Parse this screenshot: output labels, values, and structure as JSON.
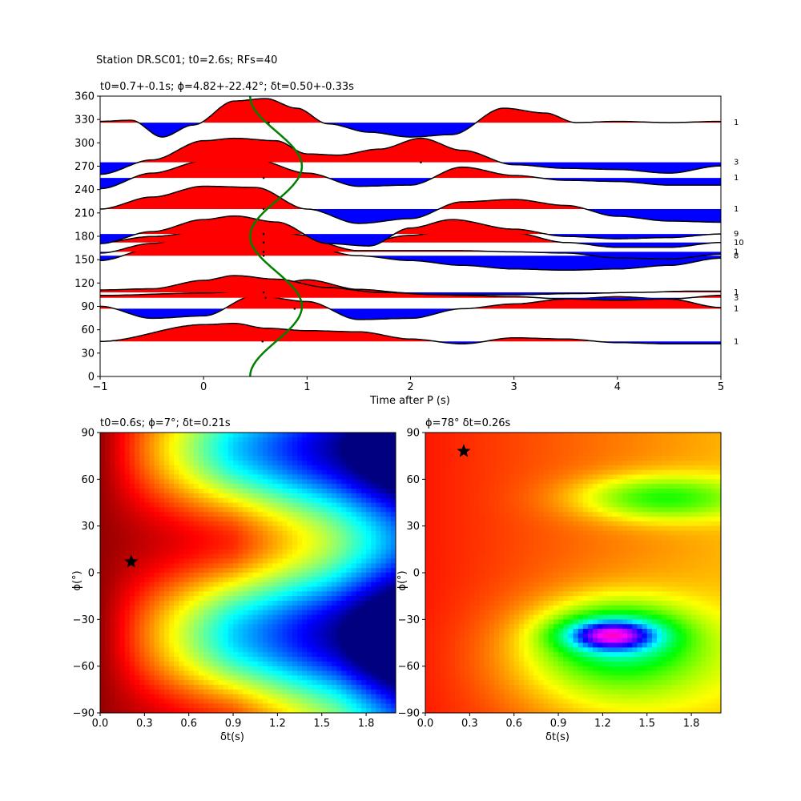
{
  "suptitle": "Station DR.SC01; t0=2.6s; RFs=40",
  "chart_data": [
    {
      "type": "wiggle",
      "title": "t0=0.7+-0.1s; ϕ=4.82+-22.42°; δt=0.50+-0.33s",
      "xlabel": "Time after P (s)",
      "ylabel": "",
      "xlim": [
        -1,
        5
      ],
      "ylim": [
        0,
        360
      ],
      "xticks": [
        "−1",
        "0",
        "1",
        "2",
        "3",
        "4",
        "5"
      ],
      "xtick_values": [
        -1,
        0,
        1,
        2,
        3,
        4,
        5
      ],
      "yticks": [
        "0",
        "30",
        "60",
        "90",
        "120",
        "150",
        "180",
        "210",
        "240",
        "270",
        "300",
        "330",
        "360"
      ],
      "ytick_values": [
        0,
        30,
        60,
        90,
        120,
        150,
        180,
        210,
        240,
        270,
        300,
        330,
        360
      ],
      "positive_color": "#ff0000",
      "negative_color": "#0000ff",
      "curve_color": "#008000",
      "baz_sine": {
        "center": 0.7,
        "amplitude": 0.25
      },
      "traces": [
        {
          "baz": 45,
          "count": "1",
          "pick": 0.57,
          "x": [
            -1,
            0,
            0.3,
            0.6,
            1,
            1.5,
            2,
            2.5,
            3,
            3.5,
            4,
            4.5,
            5
          ],
          "y": [
            0,
            0.7,
            0.75,
            0.55,
            0.45,
            0.4,
            0.1,
            -0.1,
            0.15,
            0.1,
            -0.05,
            -0.1,
            -0.1
          ]
        },
        {
          "baz": 87,
          "count": "1",
          "pick": 0.88,
          "x": [
            -1,
            -0.5,
            0,
            0.5,
            1,
            1.5,
            2,
            2.5,
            3,
            3.5,
            4,
            4.5,
            5
          ],
          "y": [
            0.1,
            -0.4,
            -0.3,
            0.55,
            0.3,
            -0.45,
            -0.4,
            0.0,
            0.2,
            0.4,
            0.5,
            0.4,
            0.05
          ]
        },
        {
          "baz": 101,
          "count": "3",
          "pick": 0.6,
          "x": [
            -1,
            0,
            0.5,
            1,
            1.5,
            2,
            2.5,
            3,
            3.5,
            4,
            4.5,
            5
          ],
          "y": [
            0.1,
            0.2,
            0.3,
            0.75,
            0.35,
            0.2,
            0.1,
            0.05,
            -0.05,
            -0.1,
            -0.05,
            0.1
          ]
        },
        {
          "baz": 108,
          "count": "1",
          "pick": 0.58,
          "x": [
            -1,
            -0.5,
            0,
            0.3,
            0.7,
            1.2,
            1.7,
            2.3,
            3,
            3.6,
            4.2,
            4.7,
            5
          ],
          "y": [
            0.1,
            0.15,
            0.5,
            0.7,
            0.55,
            0.2,
            0.0,
            -0.1,
            -0.1,
            -0.05,
            0.0,
            0.05,
            0.05
          ]
        },
        {
          "baz": 155,
          "count": "8",
          "pick": 0.58,
          "x": [
            -1,
            -0.5,
            0,
            0.4,
            0.9,
            1.5,
            2,
            2.5,
            3,
            3.5,
            4,
            4.5,
            5
          ],
          "y": [
            -0.2,
            0.3,
            0.75,
            0.85,
            0.5,
            0.0,
            -0.2,
            -0.4,
            -0.55,
            -0.6,
            -0.55,
            -0.4,
            -0.1
          ]
        },
        {
          "baz": 160,
          "count": "1",
          "pick": 0.58,
          "x": [
            -1,
            -0.5,
            0,
            0.5,
            1,
            1.5,
            2,
            2.5,
            3,
            3.5,
            4,
            4.5,
            5
          ],
          "y": [
            -0.05,
            0.35,
            0.75,
            0.95,
            0.5,
            0.05,
            0.05,
            0.05,
            0.0,
            -0.05,
            -0.25,
            -0.3,
            -0.1
          ]
        },
        {
          "baz": 172,
          "count": "10",
          "pick": 0.58,
          "x": [
            -1,
            -0.5,
            0,
            0.5,
            1,
            1.5,
            2,
            2.5,
            3,
            3.5,
            4,
            4.5,
            5
          ],
          "y": [
            0.0,
            0.25,
            0.45,
            0.65,
            0.3,
            -0.05,
            0.3,
            0.6,
            0.4,
            0.0,
            -0.2,
            -0.2,
            0.0
          ]
        },
        {
          "baz": 183,
          "count": "9",
          "pick": 0.58,
          "x": [
            -1,
            -0.5,
            0,
            0.3,
            0.7,
            1.2,
            1.6,
            2,
            2.4,
            3,
            3.5,
            4,
            4.5,
            5
          ],
          "y": [
            -0.4,
            0.1,
            0.6,
            0.75,
            0.5,
            -0.4,
            -0.5,
            0.25,
            0.6,
            0.2,
            -0.1,
            -0.2,
            -0.15,
            0.0
          ]
        },
        {
          "baz": 215,
          "count": "1",
          "pick": 0.58,
          "x": [
            -1,
            -0.5,
            0,
            0.5,
            1,
            1.5,
            2,
            2.5,
            3,
            3.5,
            4,
            4.5,
            5
          ],
          "y": [
            0.0,
            0.5,
            0.95,
            0.9,
            0.0,
            -0.6,
            -0.4,
            0.3,
            0.4,
            0.15,
            -0.3,
            -0.5,
            -0.55
          ]
        },
        {
          "baz": 255,
          "count": "1",
          "pick": 0.58,
          "x": [
            -1,
            -0.5,
            0,
            0.5,
            1,
            1.5,
            2,
            2.5,
            3,
            3.5,
            4,
            4.5,
            5
          ],
          "y": [
            -0.45,
            0.2,
            0.7,
            0.75,
            0.2,
            -0.35,
            -0.3,
            0.45,
            0.1,
            -0.1,
            -0.15,
            -0.3,
            -0.3
          ]
        },
        {
          "baz": 275,
          "count": "3",
          "pick": 2.1,
          "x": [
            -1,
            -0.5,
            0,
            0.3,
            0.7,
            1,
            1.3,
            1.7,
            2.1,
            2.5,
            3,
            3.5,
            4,
            4.5,
            5
          ],
          "y": [
            -0.5,
            0.1,
            0.9,
            1.0,
            0.9,
            0.35,
            0.3,
            0.55,
            1.0,
            0.5,
            -0.1,
            -0.25,
            -0.3,
            -0.45,
            -0.15
          ]
        },
        {
          "baz": 326,
          "count": "1",
          "pick": 0.63,
          "x": [
            -1,
            -0.7,
            -0.4,
            -0.1,
            0.3,
            0.6,
            0.9,
            1.2,
            1.6,
            2,
            2.4,
            2.9,
            3.3,
            3.6,
            4,
            4.5,
            5
          ],
          "y": [
            0.05,
            0.1,
            -0.6,
            -0.1,
            0.9,
            1.0,
            0.6,
            -0.05,
            -0.4,
            -0.6,
            -0.5,
            0.6,
            0.4,
            0.0,
            0.05,
            0.0,
            0.05
          ]
        }
      ]
    },
    {
      "type": "heatmap",
      "title": "t0=0.6s; ϕ=7°; δt=0.21s",
      "xlabel": "δt(s)",
      "ylabel": "ϕ(°)",
      "xlim": [
        0,
        2
      ],
      "ylim": [
        -90,
        90
      ],
      "xticks": [
        "0.0",
        "0.3",
        "0.6",
        "0.9",
        "1.2",
        "1.5",
        "1.8"
      ],
      "xtick_values": [
        0,
        0.3,
        0.6,
        0.9,
        1.2,
        1.5,
        1.8
      ],
      "yticks": [
        "−90",
        "−60",
        "−30",
        "0",
        "30",
        "60",
        "90"
      ],
      "ytick_values": [
        -90,
        -60,
        -30,
        0,
        30,
        60,
        90
      ],
      "colormap": "jet",
      "star": {
        "x": 0.21,
        "y": 7
      }
    },
    {
      "type": "heatmap",
      "title": "ϕ=78° δt=0.26s",
      "xlabel": "δt(s)",
      "ylabel": "ϕ(°)",
      "xlim": [
        0,
        2
      ],
      "ylim": [
        -90,
        90
      ],
      "xticks": [
        "0.0",
        "0.3",
        "0.6",
        "0.9",
        "1.2",
        "1.5",
        "1.8"
      ],
      "xtick_values": [
        0,
        0.3,
        0.6,
        0.9,
        1.2,
        1.5,
        1.8
      ],
      "yticks": [
        "−90",
        "−60",
        "−30",
        "0",
        "30",
        "60",
        "90"
      ],
      "ytick_values": [
        -90,
        -60,
        -30,
        0,
        30,
        60,
        90
      ],
      "colormap": "hsv",
      "star": {
        "x": 0.26,
        "y": 78
      }
    }
  ]
}
